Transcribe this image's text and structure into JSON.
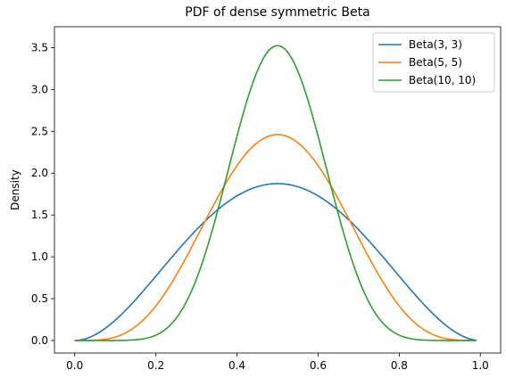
{
  "chart_data": {
    "type": "line",
    "title": "PDF of dense symmetric Beta",
    "xlabel": "",
    "ylabel": "Density",
    "xlim": [
      -0.05,
      1.05
    ],
    "ylim": [
      -0.15,
      3.75
    ],
    "x_ticks": [
      "0.0",
      "0.2",
      "0.4",
      "0.6",
      "0.8",
      "1.0"
    ],
    "y_ticks": [
      "0.0",
      "0.5",
      "1.0",
      "1.5",
      "2.0",
      "2.5",
      "3.0",
      "3.5"
    ],
    "grid": false,
    "legend_position": "top-right",
    "x_domain": [
      0,
      0.99
    ],
    "series": [
      {
        "name": "Beta(3, 3)",
        "a": 3,
        "b": 3,
        "color": "#1f77b4"
      },
      {
        "name": "Beta(5, 5)",
        "a": 5,
        "b": 5,
        "color": "#ff7f0e"
      },
      {
        "name": "Beta(10, 10)",
        "a": 10,
        "b": 10,
        "color": "#2ca02c"
      }
    ]
  }
}
